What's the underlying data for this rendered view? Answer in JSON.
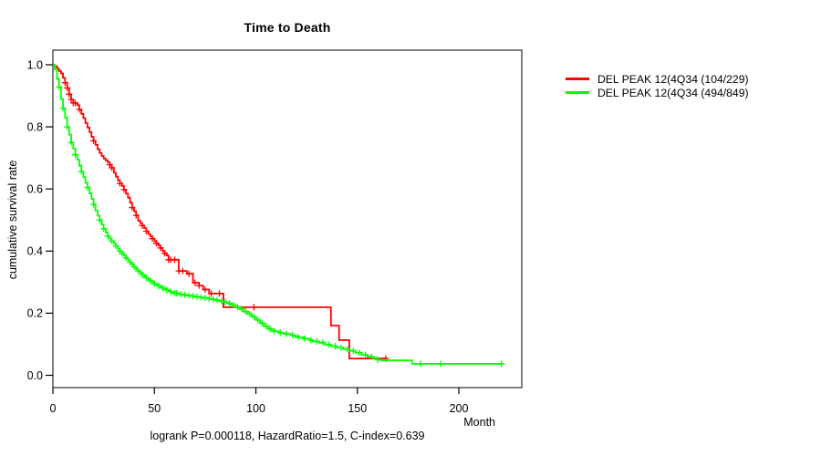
{
  "chart_data": {
    "type": "line",
    "subtype": "kaplan-meier-step-curves",
    "title": "Time to Death",
    "xlabel": "Month",
    "ylabel": "cumulative survival rate",
    "caption": "logrank P=0.000118, HazardRatio=1.5, C-index=0.639",
    "xticks": [
      0,
      50,
      100,
      150,
      200
    ],
    "yticks": [
      0.0,
      0.2,
      0.4,
      0.6,
      0.8,
      1.0
    ],
    "xlim": [
      0,
      231
    ],
    "ylim": [
      0,
      1
    ],
    "grid": false,
    "legend_position": "right-outside",
    "frame_color": "#3c3c3c",
    "tick_color": "#000000",
    "series": [
      {
        "name": "DEL PEAK 12(4Q34 (104/229)",
        "color": "#ff0000",
        "color_name": "red",
        "steps": [
          [
            0,
            1
          ],
          [
            1,
            0.995
          ],
          [
            2,
            0.988
          ],
          [
            3,
            0.98
          ],
          [
            4,
            0.972
          ],
          [
            5,
            0.958
          ],
          [
            6,
            0.942
          ],
          [
            7,
            0.925
          ],
          [
            8,
            0.905
          ],
          [
            9,
            0.888
          ],
          [
            10,
            0.877
          ],
          [
            12,
            0.87
          ],
          [
            13,
            0.856
          ],
          [
            14,
            0.842
          ],
          [
            15,
            0.828
          ],
          [
            16,
            0.812
          ],
          [
            17,
            0.798
          ],
          [
            18,
            0.783
          ],
          [
            19,
            0.768
          ],
          [
            20,
            0.755
          ],
          [
            21,
            0.742
          ],
          [
            22,
            0.728
          ],
          [
            23,
            0.716
          ],
          [
            24,
            0.706
          ],
          [
            25,
            0.698
          ],
          [
            26,
            0.692
          ],
          [
            27,
            0.686
          ],
          [
            28,
            0.678
          ],
          [
            29,
            0.668
          ],
          [
            30,
            0.652
          ],
          [
            31,
            0.64
          ],
          [
            32,
            0.628
          ],
          [
            33,
            0.618
          ],
          [
            34,
            0.61
          ],
          [
            35,
            0.598
          ],
          [
            36,
            0.585
          ],
          [
            37,
            0.572
          ],
          [
            38,
            0.556
          ],
          [
            39,
            0.54
          ],
          [
            40,
            0.528
          ],
          [
            41,
            0.515
          ],
          [
            42,
            0.498
          ],
          [
            43,
            0.49
          ],
          [
            44,
            0.482
          ],
          [
            45,
            0.474
          ],
          [
            46,
            0.464
          ],
          [
            47,
            0.455
          ],
          [
            48,
            0.448
          ],
          [
            49,
            0.44
          ],
          [
            50,
            0.432
          ],
          [
            51,
            0.425
          ],
          [
            52,
            0.418
          ],
          [
            53,
            0.41
          ],
          [
            54,
            0.401
          ],
          [
            55,
            0.393
          ],
          [
            56,
            0.386
          ],
          [
            57,
            0.372
          ],
          [
            62,
            0.336
          ],
          [
            66,
            0.327
          ],
          [
            69,
            0.298
          ],
          [
            72,
            0.289
          ],
          [
            74,
            0.276
          ],
          [
            77,
            0.263
          ],
          [
            84,
            0.219
          ],
          [
            137,
            0.16
          ],
          [
            141,
            0.113
          ],
          [
            146,
            0.054
          ],
          [
            164,
            0.054
          ]
        ],
        "censor_months": [
          6,
          7,
          8,
          9,
          10,
          11,
          13,
          20,
          28,
          29,
          33,
          35,
          39,
          41,
          44,
          46,
          49,
          51,
          53,
          55,
          57,
          58,
          60,
          62,
          64,
          67,
          70,
          72,
          75,
          78,
          82,
          99,
          164
        ]
      },
      {
        "name": "DEL PEAK 12(4Q34 (494/849)",
        "color": "#00ff00",
        "color_name": "green",
        "steps": [
          [
            0,
            1
          ],
          [
            1,
            0.985
          ],
          [
            2,
            0.955
          ],
          [
            3,
            0.928
          ],
          [
            4,
            0.89
          ],
          [
            5,
            0.86
          ],
          [
            6,
            0.83
          ],
          [
            7,
            0.8
          ],
          [
            8,
            0.775
          ],
          [
            9,
            0.75
          ],
          [
            10,
            0.73
          ],
          [
            11,
            0.71
          ],
          [
            12,
            0.694
          ],
          [
            13,
            0.675
          ],
          [
            14,
            0.656
          ],
          [
            15,
            0.638
          ],
          [
            16,
            0.62
          ],
          [
            17,
            0.605
          ],
          [
            18,
            0.586
          ],
          [
            19,
            0.568
          ],
          [
            20,
            0.55
          ],
          [
            21,
            0.53
          ],
          [
            22,
            0.514
          ],
          [
            23,
            0.5
          ],
          [
            24,
            0.486
          ],
          [
            25,
            0.472
          ],
          [
            26,
            0.46
          ],
          [
            27,
            0.448
          ],
          [
            28,
            0.44
          ],
          [
            29,
            0.432
          ],
          [
            30,
            0.424
          ],
          [
            31,
            0.416
          ],
          [
            32,
            0.408
          ],
          [
            33,
            0.4
          ],
          [
            34,
            0.392
          ],
          [
            35,
            0.385
          ],
          [
            36,
            0.378
          ],
          [
            37,
            0.37
          ],
          [
            38,
            0.363
          ],
          [
            39,
            0.356
          ],
          [
            40,
            0.349
          ],
          [
            41,
            0.342
          ],
          [
            42,
            0.336
          ],
          [
            43,
            0.33
          ],
          [
            44,
            0.324
          ],
          [
            45,
            0.319
          ],
          [
            46,
            0.314
          ],
          [
            47,
            0.309
          ],
          [
            48,
            0.304
          ],
          [
            49,
            0.3
          ],
          [
            50,
            0.295
          ],
          [
            51,
            0.291
          ],
          [
            52,
            0.288
          ],
          [
            53,
            0.284
          ],
          [
            54,
            0.281
          ],
          [
            55,
            0.278
          ],
          [
            56,
            0.275
          ],
          [
            57,
            0.272
          ],
          [
            58,
            0.269
          ],
          [
            59,
            0.266
          ],
          [
            60,
            0.264
          ],
          [
            62,
            0.261
          ],
          [
            64,
            0.259
          ],
          [
            66,
            0.257
          ],
          [
            68,
            0.255
          ],
          [
            70,
            0.253
          ],
          [
            72,
            0.251
          ],
          [
            74,
            0.249
          ],
          [
            76,
            0.247
          ],
          [
            78,
            0.245
          ],
          [
            80,
            0.242
          ],
          [
            82,
            0.239
          ],
          [
            84,
            0.236
          ],
          [
            86,
            0.231
          ],
          [
            88,
            0.226
          ],
          [
            90,
            0.22
          ],
          [
            92,
            0.213
          ],
          [
            94,
            0.205
          ],
          [
            96,
            0.197
          ],
          [
            98,
            0.188
          ],
          [
            100,
            0.178
          ],
          [
            102,
            0.168
          ],
          [
            104,
            0.158
          ],
          [
            106,
            0.149
          ],
          [
            108,
            0.142
          ],
          [
            111,
            0.137
          ],
          [
            114,
            0.133
          ],
          [
            117,
            0.129
          ],
          [
            119,
            0.126
          ],
          [
            121,
            0.122
          ],
          [
            124,
            0.118
          ],
          [
            126,
            0.113
          ],
          [
            128,
            0.109
          ],
          [
            131,
            0.105
          ],
          [
            134,
            0.099
          ],
          [
            137,
            0.094
          ],
          [
            140,
            0.089
          ],
          [
            143,
            0.084
          ],
          [
            146,
            0.079
          ],
          [
            149,
            0.073
          ],
          [
            152,
            0.066
          ],
          [
            155,
            0.06
          ],
          [
            158,
            0.055
          ],
          [
            160,
            0.05
          ],
          [
            162,
            0.048
          ],
          [
            177,
            0.037
          ],
          [
            222,
            0.037
          ]
        ],
        "censor_months": [
          3,
          5,
          7,
          9,
          11,
          14,
          17,
          20,
          23,
          25,
          27,
          29,
          31,
          33,
          34,
          36,
          38,
          40,
          42,
          44,
          46,
          48,
          50,
          52,
          54,
          56,
          58,
          60,
          61,
          63,
          65,
          67,
          69,
          71,
          73,
          75,
          77,
          79,
          81,
          83,
          85,
          87,
          89,
          91,
          93,
          95,
          97,
          99,
          101,
          103,
          105,
          107,
          109,
          112,
          115,
          118,
          121,
          124,
          127,
          130,
          133,
          136,
          139,
          142,
          145,
          148,
          151,
          154,
          157,
          160,
          181,
          191,
          221
        ]
      }
    ]
  }
}
